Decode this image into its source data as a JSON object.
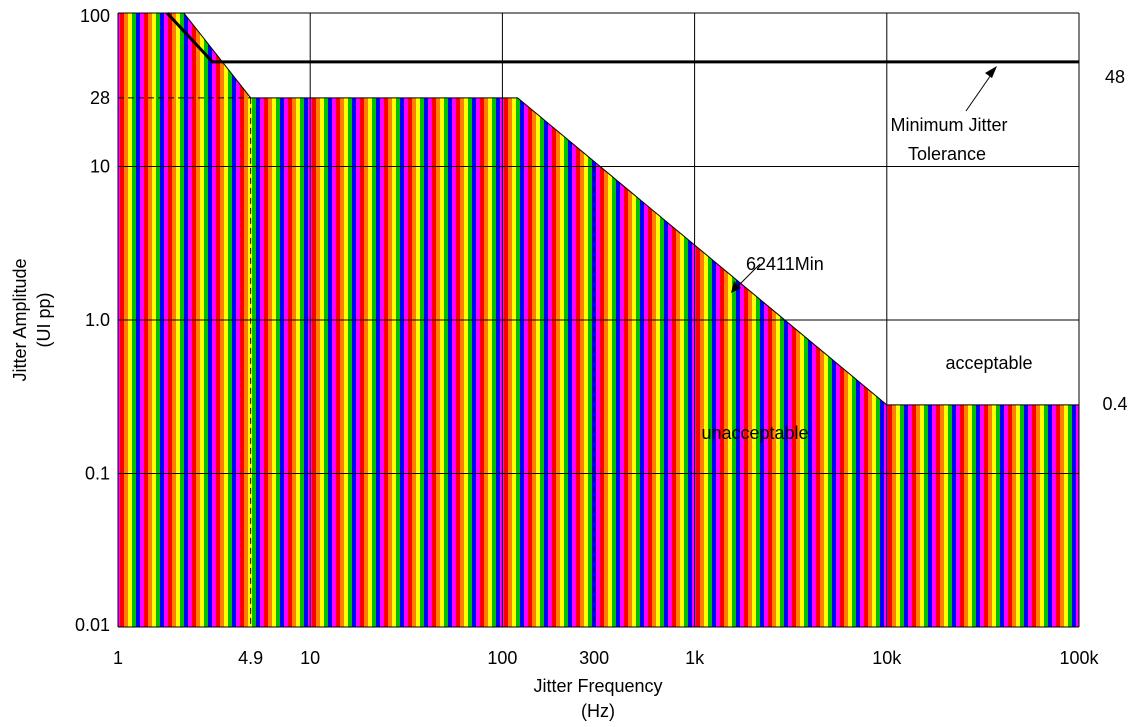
{
  "chart_data": {
    "type": "area",
    "title": "",
    "x_scale": "log",
    "y_scale": "log",
    "xlim": [
      1,
      100000
    ],
    "ylim": [
      0.01,
      100
    ],
    "grid": true,
    "xlabel_line1": "Jitter Frequency",
    "xlabel_line2": "(Hz)",
    "ylabel_line1": "Jitter Amplitude",
    "ylabel_line2": "(UI pp)",
    "x_ticks": [
      {
        "value": 1,
        "label": "1"
      },
      {
        "value": 4.9,
        "label": "4.9"
      },
      {
        "value": 10,
        "label": "10"
      },
      {
        "value": 100,
        "label": "100"
      },
      {
        "value": 300,
        "label": "300"
      },
      {
        "value": 1000,
        "label": "1k"
      },
      {
        "value": 10000,
        "label": "10k"
      },
      {
        "value": 100000,
        "label": "100k"
      }
    ],
    "y_ticks": [
      {
        "value": 100,
        "label": "100"
      },
      {
        "value": 28,
        "label": "28"
      },
      {
        "value": 10,
        "label": "10"
      },
      {
        "value": 1,
        "label": "1.0"
      },
      {
        "value": 0.1,
        "label": "0.1"
      },
      {
        "value": 0.01,
        "label": "0.01"
      }
    ],
    "right_labels": [
      {
        "value": 48,
        "label": "48"
      },
      {
        "value": 0.4,
        "label": "0.4"
      }
    ],
    "series": [
      {
        "name": "Minimum  Jitter Tolerance",
        "x": [
          1.8,
          3.1,
          100000
        ],
        "y": [
          100,
          48,
          48
        ]
      },
      {
        "name": "62411Min",
        "x": [
          1,
          2.2,
          4.9,
          120,
          10000,
          100000
        ],
        "y": [
          100,
          100,
          28,
          28,
          0.28,
          0.28
        ]
      }
    ],
    "region_labels": {
      "unacceptable": "unacceptable",
      "acceptable": "acceptable"
    },
    "annotations": {
      "min_tolerance_line1": "Minimum  Jitter",
      "min_tolerance_line2": "Tolerance",
      "curve_label": "62411Min"
    },
    "colors": {
      "stripes": [
        "#ff0000",
        "#ff8000",
        "#ffff00",
        "#00c000",
        "#0000ff",
        "#ff00ff"
      ],
      "lines": "#000000",
      "grid": "#000000"
    }
  }
}
